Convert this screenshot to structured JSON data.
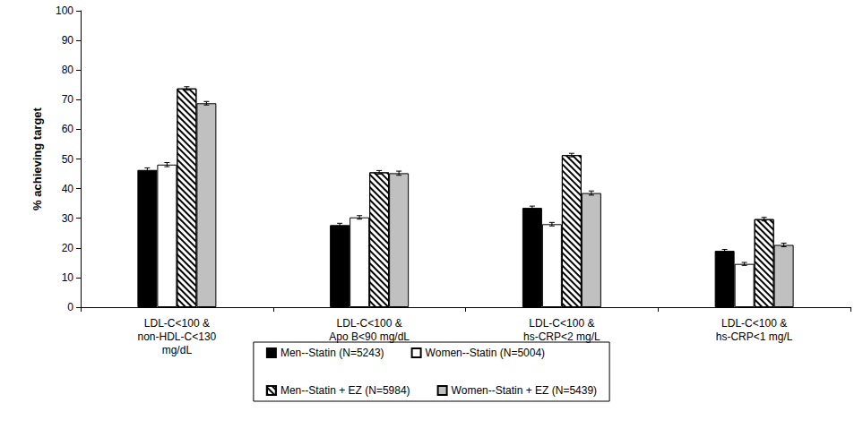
{
  "chart_data": {
    "type": "bar",
    "y_label": "% achieving target",
    "categories": [
      "LDL-C<100 &\nnon-HDL-C<130\nmg/dL",
      "LDL-C<100 &\nApo B<90 mg/dL",
      "LDL-C<100 &\nhs-CRP<2 mg/L",
      "LDL-C<100 &\nhs-CRP<1 mg/L"
    ],
    "series": [
      {
        "name": "Men--Statin (N=5243)",
        "color": "#000000",
        "values": [
          46.3,
          27.7,
          33.5,
          19.0
        ],
        "errors": [
          0.7,
          0.6,
          0.6,
          0.5
        ]
      },
      {
        "name": "Women--Statin (N=5004)",
        "color": "#ffffff",
        "values": [
          48.1,
          30.3,
          28.0,
          14.6
        ],
        "errors": [
          0.7,
          0.6,
          0.6,
          0.5
        ]
      },
      {
        "name": "Men--Statin + EZ (N=5984)",
        "color": "#ffffff",
        "values": [
          73.8,
          45.5,
          51.3,
          29.7
        ],
        "errors": [
          0.6,
          0.6,
          0.6,
          0.6
        ]
      },
      {
        "name": "Women--Statin + EZ (N=5439)",
        "color": "#c0c0c0",
        "values": [
          68.8,
          45.2,
          38.5,
          21.0
        ],
        "errors": [
          0.6,
          0.7,
          0.7,
          0.6
        ]
      }
    ],
    "ylim": [
      0,
      100
    ],
    "yticks": [
      0,
      10,
      20,
      30,
      40,
      50,
      60,
      70,
      80,
      90,
      100
    ],
    "grid": false,
    "legend": "bottom"
  }
}
